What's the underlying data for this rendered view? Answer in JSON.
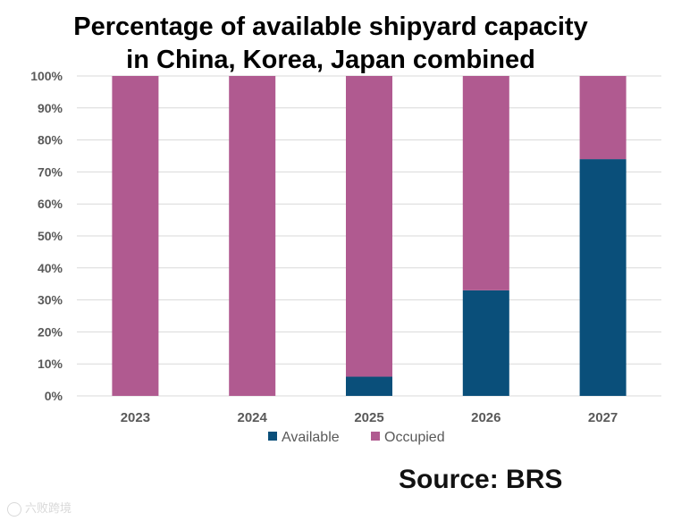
{
  "title_lines": [
    "Percentage of available shipyard capacity",
    "in China, Korea, Japan combined"
  ],
  "source": "Source: BRS",
  "watermark": "六败跨境",
  "colors": {
    "available": "#0a4f7a",
    "occupied": "#b05a90",
    "grid": "#d9d9d9",
    "tick_text": "#595959"
  },
  "chart_data": {
    "type": "bar",
    "stacked": true,
    "title": "Percentage of available shipyard capacity in China, Korea, Japan combined",
    "categories": [
      "2023",
      "2024",
      "2025",
      "2026",
      "2027"
    ],
    "series": [
      {
        "name": "Available",
        "values": [
          0,
          0,
          6,
          33,
          74
        ]
      },
      {
        "name": "Occupied",
        "values": [
          100,
          100,
          94,
          67,
          26
        ]
      }
    ],
    "ylim": [
      0,
      100
    ],
    "yticks": [
      "0%",
      "10%",
      "20%",
      "30%",
      "40%",
      "50%",
      "60%",
      "70%",
      "80%",
      "90%",
      "100%"
    ],
    "grid": true,
    "legend": "bottom",
    "xlabel": "",
    "ylabel": ""
  }
}
